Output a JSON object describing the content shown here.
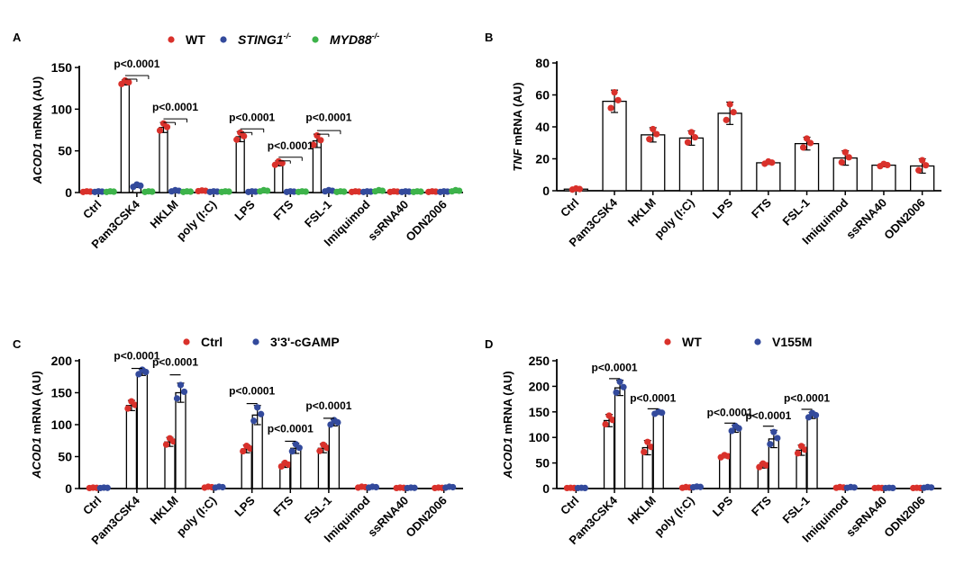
{
  "figure": {
    "categories": [
      "Ctrl",
      "Pam3CSK4",
      "HKLM",
      "poly (I:C)",
      "LPS",
      "FTS",
      "FSL-1",
      "Imiquimod",
      "ssRNA40",
      "ODN2006"
    ],
    "colors": {
      "red": "#d9312b",
      "blue": "#334a9c",
      "green": "#3db34a",
      "bar_fill": "#ffffff",
      "stroke": "#000000"
    }
  },
  "chart_data": [
    {
      "panel": "A",
      "type": "bar",
      "ylabel_gene": "ACOD1",
      "ylabel_rest": " mRNA (AU)",
      "ylim": [
        0,
        150
      ],
      "yticks": [
        0,
        50,
        100,
        150
      ],
      "legend": [
        {
          "label": "WT",
          "italic": false,
          "superscript": "",
          "color": "#d9312b"
        },
        {
          "label": "STING1",
          "italic": true,
          "superscript": "-/-",
          "color": "#334a9c"
        },
        {
          "label": "MYD88",
          "italic": true,
          "superscript": "-/-",
          "color": "#3db34a"
        }
      ],
      "series": [
        {
          "name": "WT",
          "color": "#d9312b",
          "values": [
            1,
            132,
            78,
            2,
            67,
            35,
            62,
            1,
            1,
            1
          ],
          "err": [
            0.5,
            3,
            6,
            0.5,
            6,
            3,
            8,
            0.5,
            0.5,
            0.5
          ]
        },
        {
          "name": "STING1-/-",
          "color": "#334a9c",
          "values": [
            1,
            8,
            2,
            1,
            1,
            1,
            2,
            1,
            1,
            1
          ],
          "err": [
            0.5,
            2,
            1,
            0.5,
            0.5,
            0.5,
            1,
            0.5,
            0.5,
            0.5
          ]
        },
        {
          "name": "MYD88-/-",
          "color": "#3db34a",
          "values": [
            1,
            1,
            1,
            1,
            2,
            1,
            1,
            2,
            1,
            2
          ],
          "err": [
            0.5,
            0.5,
            0.5,
            0.5,
            1,
            0.5,
            0.5,
            1,
            0.5,
            1
          ]
        }
      ],
      "annotations": [
        {
          "label": "p<0.0001",
          "category": 1,
          "ref_y": 136,
          "label_y": 150
        },
        {
          "label": "p<0.0001",
          "category": 2,
          "ref_y": 84,
          "label_y": 98
        },
        {
          "label": "p<0.0001",
          "category": 4,
          "ref_y": 72,
          "label_y": 86
        },
        {
          "label": "p<0.0001",
          "category": 5,
          "ref_y": 38,
          "label_y": 52
        },
        {
          "label": "p<0.0001",
          "category": 6,
          "ref_y": 70,
          "label_y": 86
        }
      ]
    },
    {
      "panel": "B",
      "type": "bar",
      "ylabel_gene": "TNF",
      "ylabel_rest": " mRNA (AU)",
      "ylim": [
        0,
        80
      ],
      "yticks": [
        0,
        20,
        40,
        60,
        80
      ],
      "legend": [],
      "series": [
        {
          "name": "TNF",
          "color": "#d9312b",
          "values": [
            1,
            56,
            35,
            33,
            48.5,
            17.5,
            29.5,
            20.5,
            16,
            15.5
          ],
          "err": [
            0.5,
            7,
            4.5,
            4.5,
            7,
            1,
            4,
            4.5,
            1,
            4.5
          ]
        }
      ],
      "annotations": []
    },
    {
      "panel": "C",
      "type": "bar",
      "ylabel_gene": "ACOD1",
      "ylabel_rest": " mRNA (AU)",
      "ylim": [
        0,
        200
      ],
      "yticks": [
        0,
        50,
        100,
        150,
        200
      ],
      "legend": [
        {
          "label": "Ctrl",
          "italic": false,
          "superscript": "",
          "color": "#d9312b"
        },
        {
          "label": "3'3'-cGAMP",
          "italic": false,
          "superscript": "",
          "color": "#334a9c"
        }
      ],
      "series": [
        {
          "name": "Ctrl",
          "color": "#d9312b",
          "values": [
            1,
            130,
            73,
            2,
            62,
            37,
            63,
            2,
            1,
            1
          ],
          "err": [
            0.5,
            8,
            7,
            1,
            6,
            4,
            7,
            1,
            0.5,
            0.5
          ]
        },
        {
          "name": "3'3'-cGAMP",
          "color": "#334a9c",
          "values": [
            1,
            182,
            150,
            2,
            115,
            63,
            103,
            2,
            1,
            2
          ],
          "err": [
            0.5,
            5,
            15,
            1,
            15,
            8,
            5,
            1,
            0.5,
            1
          ]
        }
      ],
      "annotations": [
        {
          "label": "p<0.0001",
          "category": 1,
          "ref_y": 188,
          "label_y": 202
        },
        {
          "label": "p<0.0001",
          "category": 2,
          "ref_y": 178,
          "label_y": 192
        },
        {
          "label": "p<0.0001",
          "category": 4,
          "ref_y": 133,
          "label_y": 147
        },
        {
          "label": "p<0.0001",
          "category": 5,
          "ref_y": 74,
          "label_y": 88
        },
        {
          "label": "p<0.0001",
          "category": 6,
          "ref_y": 110,
          "label_y": 124
        }
      ]
    },
    {
      "panel": "D",
      "type": "bar",
      "ylabel_gene": "ACOD1",
      "ylabel_rest": " mRNA (AU)",
      "ylim": [
        0,
        250
      ],
      "yticks": [
        0,
        50,
        100,
        150,
        200,
        250
      ],
      "legend": [
        {
          "label": "WT",
          "italic": false,
          "superscript": "",
          "color": "#d9312b"
        },
        {
          "label": "V155M",
          "italic": false,
          "superscript": "",
          "color": "#334a9c"
        }
      ],
      "series": [
        {
          "name": "WT",
          "color": "#d9312b",
          "values": [
            1,
            133,
            80,
            2,
            63,
            45,
            75,
            2,
            1,
            1
          ],
          "err": [
            0.5,
            12,
            14,
            1,
            3,
            5,
            10,
            1,
            0.5,
            0.5
          ]
        },
        {
          "name": "V155M",
          "color": "#334a9c",
          "values": [
            1,
            197,
            148,
            3,
            117,
            97,
            143,
            2,
            1,
            2
          ],
          "err": [
            0.5,
            15,
            3,
            1,
            7,
            17,
            6,
            1,
            0.5,
            1
          ]
        }
      ],
      "annotations": [
        {
          "label": "p<0.0001",
          "category": 1,
          "ref_y": 215,
          "label_y": 230
        },
        {
          "label": "p<0.0001",
          "category": 2,
          "ref_y": 156,
          "label_y": 170
        },
        {
          "label": "p<0.0001",
          "category": 4,
          "ref_y": 128,
          "label_y": 142
        },
        {
          "label": "p<0.0001",
          "category": 5,
          "ref_y": 122,
          "label_y": 136
        },
        {
          "label": "p<0.0001",
          "category": 6,
          "ref_y": 155,
          "label_y": 170
        }
      ]
    }
  ]
}
